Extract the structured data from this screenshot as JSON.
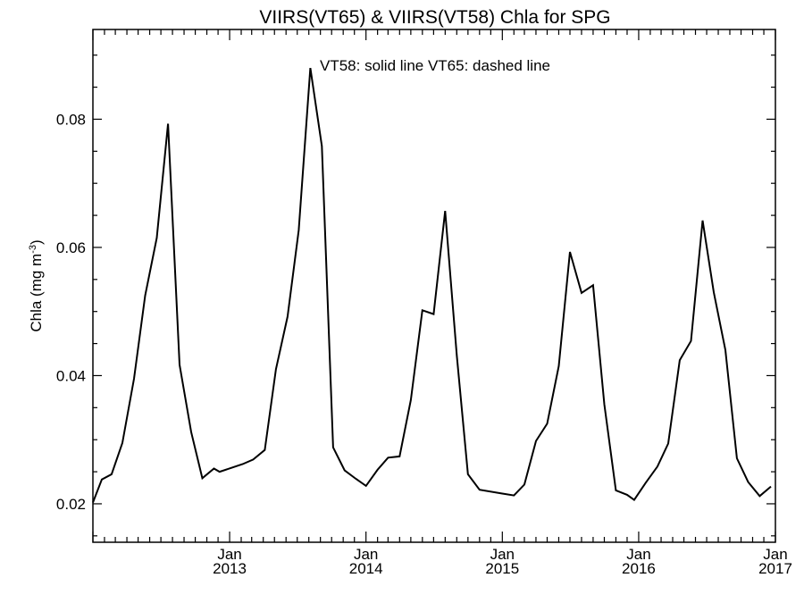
{
  "chart_data": {
    "type": "line",
    "title": "VIIRS(VT65) & VIIRS(VT58)  Chla for SPG",
    "annotation": "VT58: solid line   VT65: dashed line",
    "ylabel": "Chla (mg m",
    "ylabel_sup": "-3",
    "ylabel_close": ")",
    "xlim": [
      "2012-01-01",
      "2017-01-01"
    ],
    "ylim": [
      0.014,
      0.094
    ],
    "y_ticks": [
      {
        "value": 0.02,
        "label": "0.02"
      },
      {
        "value": 0.04,
        "label": "0.04"
      },
      {
        "value": 0.06,
        "label": "0.06"
      },
      {
        "value": 0.08,
        "label": "0.08"
      }
    ],
    "x_ticks": [
      {
        "date": "2013-01-01",
        "month": "Jan",
        "year": "2013"
      },
      {
        "date": "2014-01-01",
        "month": "Jan",
        "year": "2014"
      },
      {
        "date": "2015-01-01",
        "month": "Jan",
        "year": "2015"
      },
      {
        "date": "2016-01-01",
        "month": "Jan",
        "year": "2016"
      },
      {
        "date": "2017-01-01",
        "month": "Jan",
        "year": "2017"
      }
    ],
    "series": [
      {
        "style": "solid",
        "points": [
          [
            "2012-01-01",
            0.0202
          ],
          [
            "2012-01-25",
            0.0238
          ],
          [
            "2012-02-20",
            0.0246
          ],
          [
            "2012-03-20",
            0.0295
          ],
          [
            "2012-04-20",
            0.0395
          ],
          [
            "2012-05-20",
            0.0525
          ],
          [
            "2012-06-20",
            0.0615
          ],
          [
            "2012-07-20",
            0.0793
          ],
          [
            "2012-08-20",
            0.0417
          ],
          [
            "2012-09-20",
            0.0312
          ],
          [
            "2012-10-20",
            0.024
          ],
          [
            "2012-11-20",
            0.0255
          ],
          [
            "2012-12-05",
            0.025
          ],
          [
            "2013-01-05",
            0.0256
          ],
          [
            "2013-02-05",
            0.0262
          ],
          [
            "2013-03-05",
            0.0269
          ],
          [
            "2013-04-05",
            0.0284
          ],
          [
            "2013-05-05",
            0.041
          ],
          [
            "2013-06-05",
            0.0492
          ],
          [
            "2013-07-05",
            0.0627
          ],
          [
            "2013-08-05",
            0.088
          ],
          [
            "2013-09-05",
            0.0758
          ],
          [
            "2013-10-05",
            0.0288
          ],
          [
            "2013-11-05",
            0.0252
          ],
          [
            "2013-12-05",
            0.0239
          ],
          [
            "2014-01-01",
            0.0228
          ],
          [
            "2014-02-01",
            0.0253
          ],
          [
            "2014-03-01",
            0.0272
          ],
          [
            "2014-04-01",
            0.0274
          ],
          [
            "2014-05-01",
            0.0362
          ],
          [
            "2014-06-01",
            0.0502
          ],
          [
            "2014-07-01",
            0.0496
          ],
          [
            "2014-08-01",
            0.0657
          ],
          [
            "2014-09-01",
            0.0432
          ],
          [
            "2014-10-01",
            0.0246
          ],
          [
            "2014-11-01",
            0.0222
          ],
          [
            "2015-01-01",
            0.0216
          ],
          [
            "2015-02-01",
            0.0213
          ],
          [
            "2015-03-01",
            0.023
          ],
          [
            "2015-04-01",
            0.0298
          ],
          [
            "2015-05-01",
            0.0325
          ],
          [
            "2015-06-01",
            0.0415
          ],
          [
            "2015-07-01",
            0.0593
          ],
          [
            "2015-08-01",
            0.0529
          ],
          [
            "2015-09-01",
            0.0541
          ],
          [
            "2015-10-01",
            0.0355
          ],
          [
            "2015-11-01",
            0.0221
          ],
          [
            "2015-12-01",
            0.0214
          ],
          [
            "2015-12-20",
            0.0206
          ],
          [
            "2016-01-20",
            0.0233
          ],
          [
            "2016-02-20",
            0.0258
          ],
          [
            "2016-03-20",
            0.0294
          ],
          [
            "2016-04-20",
            0.0424
          ],
          [
            "2016-05-20",
            0.0454
          ],
          [
            "2016-06-20",
            0.0642
          ],
          [
            "2016-07-20",
            0.053
          ],
          [
            "2016-08-20",
            0.044
          ],
          [
            "2016-09-20",
            0.0271
          ],
          [
            "2016-10-20",
            0.0234
          ],
          [
            "2016-11-20",
            0.0212
          ],
          [
            "2016-12-20",
            0.0227
          ]
        ]
      }
    ]
  }
}
